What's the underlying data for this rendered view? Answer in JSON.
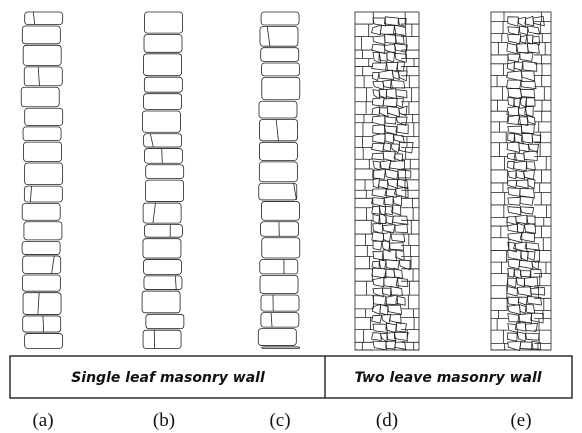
{
  "table": {
    "cells": [
      "Single leaf masonry wall",
      "Two leave masonry wall"
    ]
  },
  "captions": [
    "(a)",
    "(b)",
    "(c)",
    "(d)",
    "(e)"
  ]
}
